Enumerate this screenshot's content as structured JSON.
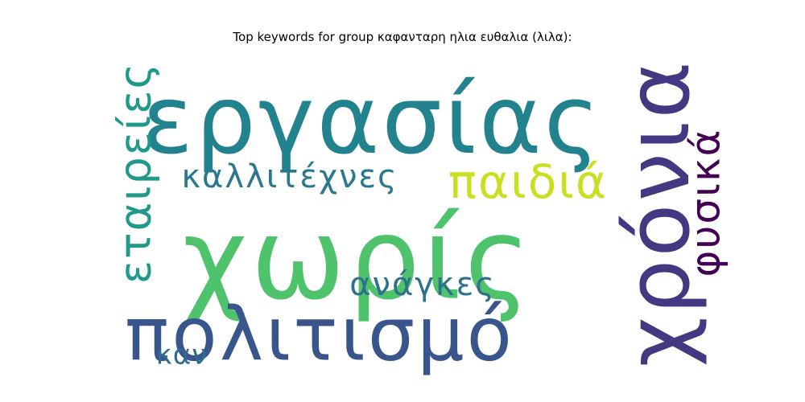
{
  "title": "Top keywords for group καφανταρη ηλια ευθαλια (λιλα):",
  "words": [
    {
      "text": "εργασίας",
      "color": "#22838e",
      "orientation": "horizontal",
      "weight": 1.0
    },
    {
      "text": "χωρίς",
      "color": "#4ec36b",
      "orientation": "horizontal",
      "weight": 0.95
    },
    {
      "text": "πολιτισμό",
      "color": "#39568c",
      "orientation": "horizontal",
      "weight": 0.9
    },
    {
      "text": "χρόνια",
      "color": "#453882",
      "orientation": "vertical",
      "weight": 0.92
    },
    {
      "text": "εταιρείες",
      "color": "#1f9a8a",
      "orientation": "vertical",
      "weight": 0.55
    },
    {
      "text": "φυσικά",
      "color": "#440154",
      "orientation": "vertical",
      "weight": 0.5
    },
    {
      "text": "παιδιά",
      "color": "#c8e020",
      "orientation": "horizontal",
      "weight": 0.52
    },
    {
      "text": "καλλιτέχνες",
      "color": "#2a788e",
      "orientation": "horizontal",
      "weight": 0.4
    },
    {
      "text": "ανάγκες",
      "color": "#2c728e",
      "orientation": "horizontal",
      "weight": 0.43
    },
    {
      "text": "καν",
      "color": "#2f6b8e",
      "orientation": "horizontal",
      "weight": 0.35
    }
  ]
}
